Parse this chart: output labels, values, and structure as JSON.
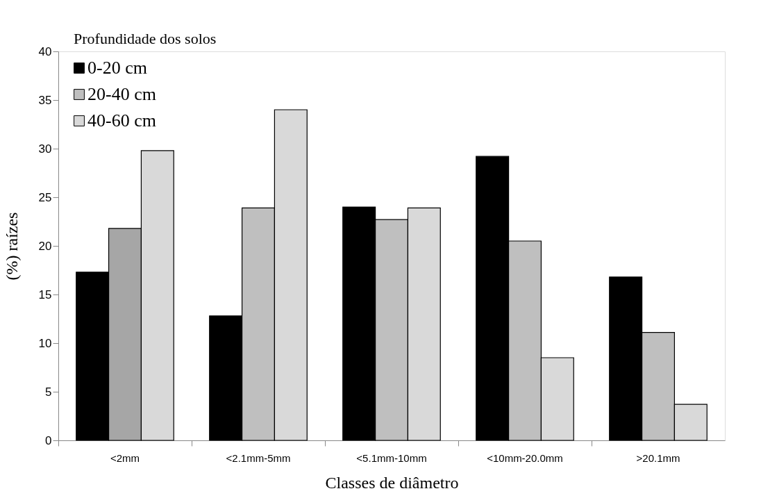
{
  "chart_data": {
    "type": "bar",
    "xlabel": "Classes de diâmetro",
    "ylabel": "(%) raízes",
    "legend_title": "Profundidade dos solos",
    "categories": [
      "<2mm",
      "<2.1mm-5mm",
      "<5.1mm-10mm",
      "<10mm-20.0mm",
      ">20.1mm"
    ],
    "series": [
      {
        "name": "0-20 cm",
        "color": "#000000",
        "values": [
          17.3,
          12.8,
          24.0,
          29.2,
          16.8
        ]
      },
      {
        "name": "20-40 cm",
        "color": "#bfbfbf",
        "colors": [
          "#a6a6a6",
          "#bfbfbf",
          "#bfbfbf",
          "#bfbfbf",
          "#bfbfbf"
        ],
        "values": [
          21.8,
          23.9,
          22.7,
          20.5,
          11.1
        ]
      },
      {
        "name": "40-60 cm",
        "color": "#d9d9d9",
        "values": [
          29.8,
          34.0,
          23.9,
          8.5,
          3.7
        ]
      }
    ],
    "ylim": [
      0,
      40
    ],
    "yticks": [
      0,
      5,
      10,
      15,
      20,
      25,
      30,
      35,
      40
    ],
    "grid": false,
    "legend": "top left"
  }
}
